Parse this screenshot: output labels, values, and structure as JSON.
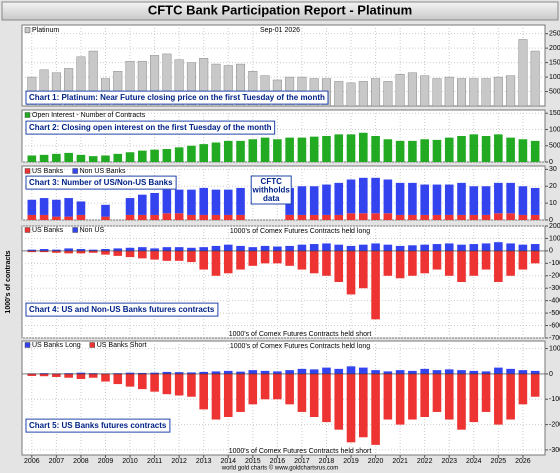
{
  "title": "CFTC Bank Participation Report - Platinum",
  "footer": "world gold charts © www.goldchartsrus.com",
  "chart_data": [
    {
      "type": "bar",
      "label": "Chart 1: Platinum: Near Future closing price on the first Tuesday of the month",
      "subtitle": "Sep-01 2026",
      "x": [
        2006,
        2006.5,
        2007,
        2007.5,
        2008,
        2008.5,
        2009,
        2009.5,
        2010,
        2010.5,
        2011,
        2011.5,
        2012,
        2012.5,
        2013,
        2013.5,
        2014,
        2014.5,
        2015,
        2015.5,
        2016,
        2016.5,
        2017,
        2017.5,
        2018,
        2018.5,
        2019,
        2019.5,
        2020,
        2020.5,
        2021,
        2021.5,
        2022,
        2022.5,
        2023,
        2023.5,
        2024,
        2024.5,
        2025,
        2025.5,
        2026,
        2026.5
      ],
      "series": [
        {
          "name": "Platinum",
          "color": "#c8c8c8",
          "values": [
            1000,
            1250,
            1150,
            1300,
            1700,
            1900,
            950,
            1200,
            1550,
            1550,
            1750,
            1800,
            1600,
            1500,
            1650,
            1450,
            1400,
            1450,
            1200,
            1050,
            900,
            1000,
            1000,
            950,
            950,
            850,
            800,
            850,
            950,
            850,
            1100,
            1150,
            1050,
            950,
            1000,
            950,
            950,
            950,
            1000,
            1050,
            2300,
            1900
          ]
        }
      ],
      "ylim": [
        0,
        2800
      ],
      "yticks": [
        500,
        1000,
        1500,
        2000,
        2500
      ],
      "grid": true
    },
    {
      "type": "bar",
      "label": "Chart 2: Closing open interest on the first Tuesday of the month",
      "x": [
        2006,
        2006.5,
        2007,
        2007.5,
        2008,
        2008.5,
        2009,
        2009.5,
        2010,
        2010.5,
        2011,
        2011.5,
        2012,
        2012.5,
        2013,
        2013.5,
        2014,
        2014.5,
        2015,
        2015.5,
        2016,
        2016.5,
        2017,
        2017.5,
        2018,
        2018.5,
        2019,
        2019.5,
        2020,
        2020.5,
        2021,
        2021.5,
        2022,
        2022.5,
        2023,
        2023.5,
        2024,
        2024.5,
        2025,
        2025.5,
        2026,
        2026.5
      ],
      "series": [
        {
          "name": "Open Interest - Number of Contracts",
          "color": "#22aa22",
          "values": [
            20000,
            22000,
            25000,
            28000,
            22000,
            18000,
            20000,
            25000,
            30000,
            35000,
            38000,
            40000,
            45000,
            50000,
            55000,
            60000,
            65000,
            65000,
            70000,
            75000,
            70000,
            75000,
            75000,
            78000,
            80000,
            85000,
            85000,
            90000,
            80000,
            70000,
            65000,
            65000,
            70000,
            68000,
            75000,
            80000,
            85000,
            80000,
            85000,
            75000,
            70000,
            65000
          ]
        }
      ],
      "ylim": [
        0,
        160000
      ],
      "yticks": [
        0,
        50000,
        100000,
        150000
      ],
      "grid": true
    },
    {
      "type": "bar",
      "stacked": true,
      "label": "Chart 3: Number of US/Non-US Banks",
      "annotation": "CFTC withholds data",
      "x": [
        2006,
        2006.5,
        2007,
        2007.5,
        2008,
        2008.5,
        2009,
        2009.5,
        2010,
        2010.5,
        2011,
        2011.5,
        2012,
        2012.5,
        2013,
        2013.5,
        2014,
        2014.5,
        2015,
        2015.5,
        2016,
        2016.5,
        2017,
        2017.5,
        2018,
        2018.5,
        2019,
        2019.5,
        2020,
        2020.5,
        2021,
        2021.5,
        2022,
        2022.5,
        2023,
        2023.5,
        2024,
        2024.5,
        2025,
        2025.5,
        2026,
        2026.5
      ],
      "series": [
        {
          "name": "US Banks",
          "color": "#ee3333",
          "values": [
            3,
            3,
            2,
            2,
            3,
            null,
            2,
            null,
            3,
            3,
            3,
            4,
            4,
            3,
            3,
            3,
            3,
            3,
            null,
            null,
            null,
            3,
            3,
            3,
            3,
            3,
            4,
            4,
            4,
            4,
            3,
            3,
            3,
            3,
            3,
            3,
            3,
            3,
            4,
            4,
            3,
            3
          ]
        },
        {
          "name": "Non US Banks",
          "color": "#3344ee",
          "values": [
            9,
            10,
            10,
            11,
            8,
            null,
            7,
            null,
            10,
            12,
            13,
            14,
            14,
            15,
            16,
            15,
            15,
            16,
            null,
            null,
            null,
            16,
            17,
            17,
            18,
            19,
            20,
            21,
            21,
            20,
            19,
            19,
            18,
            18,
            18,
            19,
            17,
            17,
            18,
            18,
            17,
            16
          ]
        }
      ],
      "ylim": [
        0,
        32
      ],
      "yticks": [
        0,
        10,
        20,
        30
      ],
      "grid": true
    },
    {
      "type": "bar",
      "label": "Chart 4: US and Non-US Banks futures contracts",
      "ylabel": "1000's of contracts",
      "top_note": "1000's of Comex Futures Contracts held long",
      "bottom_note": "1000's of Comex Futures Contracts held short",
      "x": [
        2006,
        2006.5,
        2007,
        2007.5,
        2008,
        2008.5,
        2009,
        2009.5,
        2010,
        2010.5,
        2011,
        2011.5,
        2012,
        2012.5,
        2013,
        2013.5,
        2014,
        2014.5,
        2015,
        2015.5,
        2016,
        2016.5,
        2017,
        2017.5,
        2018,
        2018.5,
        2019,
        2019.5,
        2020,
        2020.5,
        2021,
        2021.5,
        2022,
        2022.5,
        2023,
        2023.5,
        2024,
        2024.5,
        2025,
        2025.5,
        2026,
        2026.5
      ],
      "series": [
        {
          "name": "US Banks",
          "color": "#ee3333",
          "values": [
            -1000,
            -1000,
            -1500,
            -2000,
            -2000,
            -1500,
            -3000,
            -4000,
            -5000,
            -6000,
            -7000,
            -8000,
            -8000,
            -9000,
            -15000,
            -20000,
            -18000,
            -15000,
            -12000,
            -10000,
            -10000,
            -12000,
            -15000,
            -18000,
            -20000,
            -25000,
            -35000,
            -30000,
            -55000,
            -20000,
            -22000,
            -20000,
            -18000,
            -15000,
            -20000,
            -25000,
            -20000,
            -15000,
            -25000,
            -20000,
            -15000,
            -10000
          ]
        },
        {
          "name": "Non US",
          "color": "#3344ee",
          "values": [
            1000,
            1500,
            1000,
            2000,
            1500,
            1000,
            1500,
            2000,
            2500,
            3000,
            2000,
            3000,
            3000,
            2500,
            3000,
            4000,
            5000,
            4000,
            3000,
            4000,
            3500,
            4000,
            5000,
            5500,
            6000,
            5000,
            4000,
            5000,
            6000,
            5000,
            4000,
            4500,
            5000,
            5500,
            6000,
            5000,
            5500,
            6000,
            7000,
            6000,
            5000,
            5500
          ]
        }
      ],
      "ylim": [
        -70000,
        20000
      ],
      "yticks": [
        20000,
        10000,
        0,
        -10000,
        -20000,
        -30000,
        -40000,
        -50000,
        -60000,
        -70000
      ],
      "grid": true
    },
    {
      "type": "bar",
      "label": "Chart 5: US Banks futures contracts",
      "top_note": "1000's of Comex Futures Contracts held long",
      "bottom_note": "1000's of Comex Futures Contracts held short",
      "x": [
        2006,
        2006.5,
        2007,
        2007.5,
        2008,
        2008.5,
        2009,
        2009.5,
        2010,
        2010.5,
        2011,
        2011.5,
        2012,
        2012.5,
        2013,
        2013.5,
        2014,
        2014.5,
        2015,
        2015.5,
        2016,
        2016.5,
        2017,
        2017.5,
        2018,
        2018.5,
        2019,
        2019.5,
        2020,
        2020.5,
        2021,
        2021.5,
        2022,
        2022.5,
        2023,
        2023.5,
        2024,
        2024.5,
        2025,
        2025.5,
        2026,
        2026.5
      ],
      "series": [
        {
          "name": "US Banks Long",
          "color": "#3344ee",
          "values": [
            200,
            300,
            200,
            300,
            500,
            300,
            200,
            300,
            500,
            400,
            500,
            800,
            700,
            600,
            800,
            1000,
            1200,
            900,
            1500,
            1200,
            1000,
            1500,
            2000,
            1800,
            2500,
            2000,
            3000,
            2500,
            1500,
            1000,
            1500,
            1200,
            2000,
            1500,
            1800,
            1500,
            1200,
            1000,
            2500,
            2000,
            1500,
            1200
          ]
        },
        {
          "name": "US Banks Short",
          "color": "#ee3333",
          "values": [
            -800,
            -900,
            -1200,
            -1500,
            -2000,
            -1500,
            -3000,
            -4000,
            -5000,
            -6000,
            -7000,
            -8000,
            -8500,
            -9000,
            -14000,
            -18000,
            -17000,
            -15000,
            -12000,
            -10000,
            -10000,
            -12000,
            -15000,
            -17000,
            -19000,
            -22000,
            -27000,
            -25000,
            -28000,
            -18000,
            -20000,
            -18000,
            -17000,
            -15000,
            -18000,
            -22000,
            -19000,
            -15000,
            -20000,
            -18000,
            -12000,
            -9000
          ]
        }
      ],
      "ylim": [
        -32000,
        13000
      ],
      "yticks": [
        10000,
        0,
        -10000,
        -20000,
        -30000
      ],
      "grid": true,
      "xlim": [
        2005.6,
        2026.9
      ],
      "xticks": [
        2006,
        2007,
        2008,
        2009,
        2010,
        2011,
        2012,
        2013,
        2014,
        2015,
        2016,
        2017,
        2018,
        2019,
        2020,
        2021,
        2022,
        2023,
        2024,
        2025,
        2026
      ]
    }
  ]
}
